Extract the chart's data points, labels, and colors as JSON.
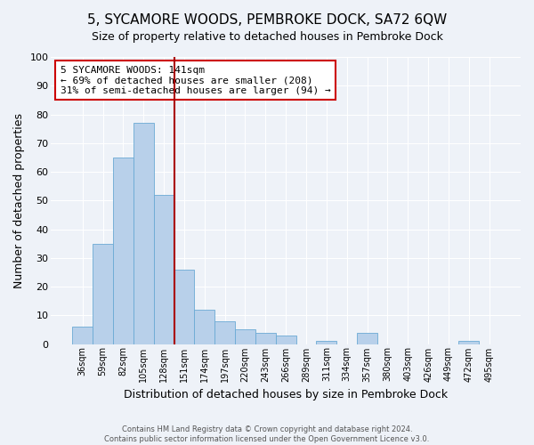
{
  "title": "5, SYCAMORE WOODS, PEMBROKE DOCK, SA72 6QW",
  "subtitle": "Size of property relative to detached houses in Pembroke Dock",
  "xlabel": "Distribution of detached houses by size in Pembroke Dock",
  "ylabel": "Number of detached properties",
  "bar_labels": [
    "36sqm",
    "59sqm",
    "82sqm",
    "105sqm",
    "128sqm",
    "151sqm",
    "174sqm",
    "197sqm",
    "220sqm",
    "243sqm",
    "266sqm",
    "289sqm",
    "311sqm",
    "334sqm",
    "357sqm",
    "380sqm",
    "403sqm",
    "426sqm",
    "449sqm",
    "472sqm",
    "495sqm"
  ],
  "bar_values": [
    6,
    35,
    65,
    77,
    52,
    26,
    12,
    8,
    5,
    4,
    3,
    0,
    1,
    0,
    4,
    0,
    0,
    0,
    0,
    1,
    0
  ],
  "bar_color": "#b8d0ea",
  "bar_edge_color": "#6aaad4",
  "vline_color": "#aa0000",
  "vline_index": 5,
  "annotation_title": "5 SYCAMORE WOODS: 141sqm",
  "annotation_line1": "← 69% of detached houses are smaller (208)",
  "annotation_line2": "31% of semi-detached houses are larger (94) →",
  "annotation_box_color": "#ffffff",
  "annotation_box_edge": "#cc0000",
  "ylim": [
    0,
    100
  ],
  "yticks": [
    0,
    10,
    20,
    30,
    40,
    50,
    60,
    70,
    80,
    90,
    100
  ],
  "footer1": "Contains HM Land Registry data © Crown copyright and database right 2024.",
  "footer2": "Contains public sector information licensed under the Open Government Licence v3.0.",
  "bg_color": "#eef2f8",
  "grid_color": "#ffffff",
  "title_fontsize": 11,
  "subtitle_fontsize": 9
}
